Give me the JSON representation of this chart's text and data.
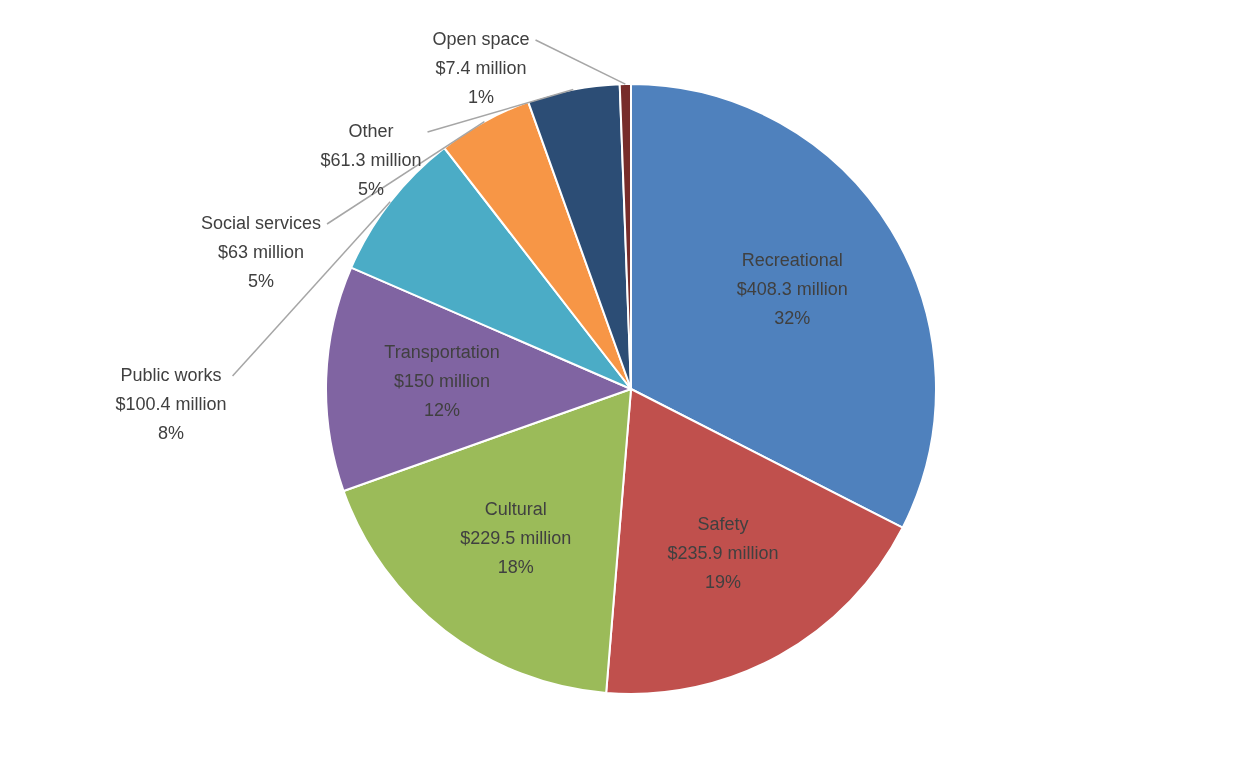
{
  "chart_data": {
    "type": "pie",
    "categories": [
      "Recreational",
      "Safety",
      "Cultural",
      "Transportation",
      "Public works",
      "Social services",
      "Other",
      "Open space"
    ],
    "values": [
      408.3,
      235.9,
      229.5,
      150,
      100.4,
      63,
      61.3,
      7.4
    ],
    "value_labels": [
      "$408.3 million",
      "$235.9 million",
      "$229.5 million",
      "$150 million",
      "$100.4 million",
      "$63 million",
      "$61.3 million",
      "$7.4 million"
    ],
    "annotations": [
      "32%",
      "19%",
      "18%",
      "12%",
      "8%",
      "5%",
      "5%",
      "1%"
    ],
    "colors": [
      "#4f81bd",
      "#c0504d",
      "#9bbb59",
      "#8064a2",
      "#4bacc6",
      "#f79646",
      "#2c4d75",
      "#772c2a"
    ],
    "legend": false
  }
}
